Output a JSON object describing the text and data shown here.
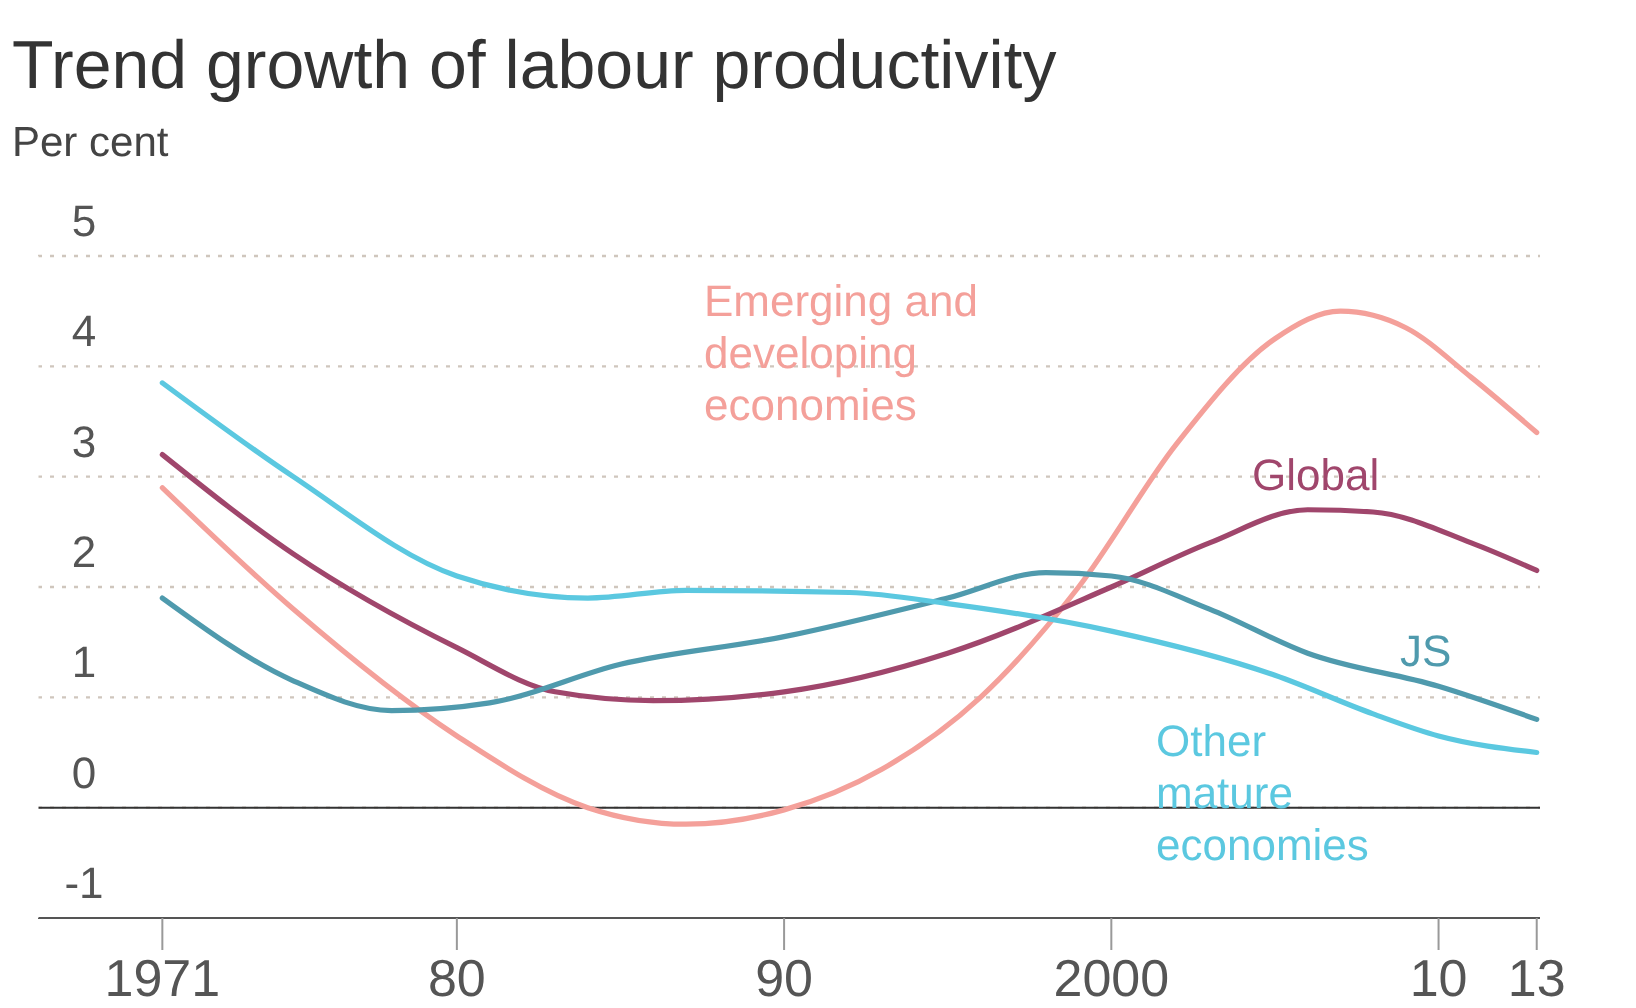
{
  "chart_data": {
    "type": "line",
    "title": "Trend growth of labour productivity",
    "ylabel": "Per cent",
    "xlim": [
      1967.2,
      2013.1
    ],
    "xticks": [
      1971,
      {
        "value": 1980,
        "label": "80"
      },
      {
        "value": 1990,
        "label": "90"
      },
      2000,
      {
        "value": 2010,
        "label": "10"
      },
      {
        "value": 2013,
        "label": "13"
      }
    ],
    "ylim": [
      -1,
      5
    ],
    "yticks": [
      -1,
      0,
      1,
      2,
      3,
      4,
      5
    ],
    "grid": "y",
    "ref_lines": [
      {
        "axis": "y",
        "value": 0,
        "color": "#333333"
      }
    ],
    "series": [
      {
        "name": "Emerging and developing economies",
        "color": "#f4a09a",
        "x": [
          1971,
          1975,
          1980,
          1984,
          1987,
          1990,
          1993,
          1996,
          1999,
          2002,
          2005,
          2007,
          2009,
          2011,
          2013
        ],
        "values": [
          2.9,
          1.8,
          0.65,
          0.0,
          -0.15,
          -0.02,
          0.35,
          1.0,
          2.0,
          3.3,
          4.25,
          4.5,
          4.35,
          3.9,
          3.4
        ]
      },
      {
        "name": "Global",
        "color": "#a0466c",
        "x": [
          1971,
          1975,
          1980,
          1983,
          1986,
          1990,
          1995,
          2000,
          2003,
          2006,
          2008,
          2011,
          2013
        ],
        "values": [
          3.2,
          2.3,
          1.45,
          1.05,
          0.97,
          1.05,
          1.4,
          2.0,
          2.4,
          2.7,
          2.68,
          2.4,
          2.15
        ]
      },
      {
        "name": "JS",
        "color": "#4f9aad",
        "x": [
          1971,
          1975,
          1978,
          1981,
          1985,
          1990,
          1995,
          1998,
          2000,
          2003,
          2006,
          2010,
          2013
        ],
        "values": [
          1.9,
          1.15,
          0.88,
          0.95,
          1.3,
          1.55,
          1.9,
          2.13,
          2.1,
          1.8,
          1.4,
          1.1,
          0.8
        ]
      },
      {
        "name": "Other mature economies",
        "color": "#5bc8e0",
        "x": [
          1971,
          1975,
          1980,
          1984,
          1987,
          1992,
          1995,
          2000,
          2005,
          2008,
          2010,
          2013
        ],
        "values": [
          3.85,
          3.0,
          2.1,
          1.9,
          1.97,
          1.95,
          1.85,
          1.6,
          1.2,
          0.85,
          0.65,
          0.5
        ]
      }
    ]
  }
}
